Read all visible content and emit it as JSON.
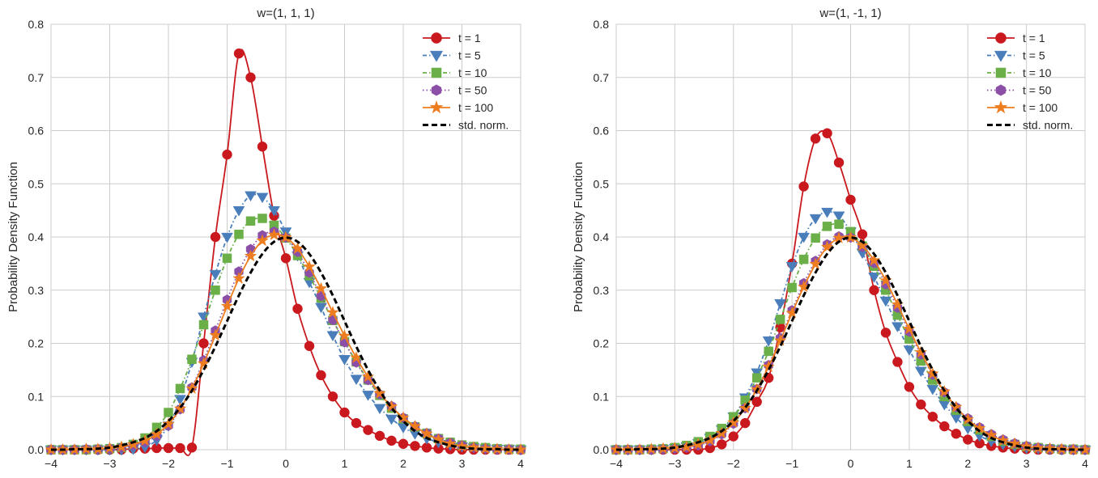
{
  "chart_data": [
    {
      "type": "line",
      "title": "w=(1, 1, 1)",
      "ylabel": "Probability Density Function",
      "xlim": [
        -4,
        4
      ],
      "ylim": [
        0,
        0.8
      ],
      "xticks": [
        "−4",
        "−3",
        "−2",
        "−1",
        "0",
        "1",
        "2",
        "3",
        "4"
      ],
      "yticks": [
        "0.0",
        "0.1",
        "0.2",
        "0.3",
        "0.4",
        "0.5",
        "0.6",
        "0.7",
        "0.8"
      ],
      "grid": true,
      "legend": "top-right",
      "x": [
        -4,
        -3.8,
        -3.6,
        -3.4,
        -3.2,
        -3,
        -2.8,
        -2.6,
        -2.4,
        -2.2,
        -2,
        -1.8,
        -1.6,
        -1.4,
        -1.2,
        -1,
        -0.8,
        -0.6,
        -0.4,
        -0.2,
        0,
        0.2,
        0.4,
        0.6,
        0.8,
        1,
        1.2,
        1.4,
        1.6,
        1.8,
        2,
        2.2,
        2.4,
        2.6,
        2.8,
        3,
        3.2,
        3.4,
        3.6,
        3.8,
        4
      ],
      "series": [
        {
          "name": "t = 1",
          "color": "#c9191e",
          "marker": "circle",
          "linestyle": "solid",
          "values": [
            0,
            0,
            0,
            0,
            0,
            0,
            0,
            0.002,
            0.002,
            0.003,
            0.003,
            0.003,
            0.004,
            0.2,
            0.4,
            0.555,
            0.745,
            0.7,
            0.57,
            0.44,
            0.36,
            0.265,
            0.195,
            0.14,
            0.1,
            0.07,
            0.05,
            0.037,
            0.026,
            0.017,
            0.011,
            0.007,
            0.004,
            0.002,
            0.001,
            0,
            0,
            0,
            0,
            0,
            0
          ]
        },
        {
          "name": "t = 5",
          "color": "#4a7ebb",
          "marker": "triangle-down",
          "linestyle": "dashdot",
          "values": [
            0,
            0,
            0,
            0,
            0,
            0,
            0,
            0.001,
            0.005,
            0.018,
            0.045,
            0.095,
            0.165,
            0.25,
            0.33,
            0.4,
            0.45,
            0.478,
            0.475,
            0.45,
            0.41,
            0.365,
            0.315,
            0.268,
            0.215,
            0.17,
            0.133,
            0.103,
            0.078,
            0.058,
            0.042,
            0.03,
            0.021,
            0.014,
            0.009,
            0.006,
            0.004,
            0.002,
            0.001,
            0.001,
            0
          ]
        },
        {
          "name": "t = 10",
          "color": "#6aaf48",
          "marker": "square",
          "linestyle": "dashdot",
          "values": [
            0,
            0,
            0,
            0,
            0.001,
            0.002,
            0.004,
            0.01,
            0.022,
            0.042,
            0.07,
            0.115,
            0.17,
            0.235,
            0.3,
            0.36,
            0.405,
            0.43,
            0.435,
            0.422,
            0.398,
            0.365,
            0.327,
            0.285,
            0.243,
            0.203,
            0.165,
            0.131,
            0.102,
            0.078,
            0.058,
            0.043,
            0.031,
            0.021,
            0.014,
            0.009,
            0.006,
            0.004,
            0.002,
            0.001,
            0.001
          ]
        },
        {
          "name": "t = 50",
          "color": "#8b4fa8",
          "marker": "hexagon",
          "linestyle": "dotted",
          "values": [
            0,
            0,
            0,
            0.001,
            0.001,
            0.002,
            0.004,
            0.008,
            0.014,
            0.026,
            0.045,
            0.076,
            0.117,
            0.168,
            0.224,
            0.282,
            0.335,
            0.377,
            0.403,
            0.41,
            0.399,
            0.372,
            0.333,
            0.289,
            0.244,
            0.202,
            0.164,
            0.131,
            0.104,
            0.082,
            0.06,
            0.044,
            0.031,
            0.021,
            0.013,
            0.008,
            0.004,
            0.002,
            0.001,
            0.001,
            0
          ]
        },
        {
          "name": "t = 100",
          "color": "#ee7d1f",
          "marker": "star",
          "linestyle": "solid",
          "values": [
            0,
            0,
            0,
            0.001,
            0.001,
            0.003,
            0.005,
            0.01,
            0.017,
            0.029,
            0.048,
            0.077,
            0.115,
            0.162,
            0.215,
            0.27,
            0.322,
            0.364,
            0.393,
            0.404,
            0.399,
            0.378,
            0.344,
            0.303,
            0.258,
            0.214,
            0.173,
            0.137,
            0.106,
            0.081,
            0.06,
            0.044,
            0.03,
            0.019,
            0.011,
            0.006,
            0.004,
            0.002,
            0.001,
            0,
            0
          ]
        },
        {
          "name": "std. norm.",
          "color": "#000000",
          "marker": "none",
          "linestyle": "dashed",
          "values": [
            0,
            0,
            0.001,
            0.001,
            0.002,
            0.004,
            0.008,
            0.014,
            0.022,
            0.035,
            0.054,
            0.079,
            0.111,
            0.15,
            0.194,
            0.242,
            0.29,
            0.333,
            0.368,
            0.391,
            0.399,
            0.391,
            0.368,
            0.333,
            0.29,
            0.242,
            0.194,
            0.15,
            0.111,
            0.079,
            0.054,
            0.035,
            0.022,
            0.014,
            0.008,
            0.004,
            0.002,
            0.001,
            0.001,
            0,
            0
          ]
        }
      ]
    },
    {
      "type": "line",
      "title": "w=(1, -1, 1)",
      "ylabel": "Probability Density Function",
      "xlim": [
        -4,
        4
      ],
      "ylim": [
        0,
        0.8
      ],
      "xticks": [
        "−4",
        "−3",
        "−2",
        "−1",
        "0",
        "1",
        "2",
        "3",
        "4"
      ],
      "yticks": [
        "0.0",
        "0.1",
        "0.2",
        "0.3",
        "0.4",
        "0.5",
        "0.6",
        "0.7",
        "0.8"
      ],
      "grid": true,
      "legend": "top-right",
      "x": [
        -4,
        -3.8,
        -3.6,
        -3.4,
        -3.2,
        -3,
        -2.8,
        -2.6,
        -2.4,
        -2.2,
        -2,
        -1.8,
        -1.6,
        -1.4,
        -1.2,
        -1,
        -0.8,
        -0.6,
        -0.4,
        -0.2,
        0,
        0.2,
        0.4,
        0.6,
        0.8,
        1,
        1.2,
        1.4,
        1.6,
        1.8,
        2,
        2.2,
        2.4,
        2.6,
        2.8,
        3,
        3.2,
        3.4,
        3.6,
        3.8,
        4
      ],
      "series": [
        {
          "name": "t = 1",
          "color": "#c9191e",
          "marker": "circle",
          "linestyle": "solid",
          "values": [
            0,
            0,
            0,
            0,
            0,
            0,
            0,
            0,
            0.003,
            0.01,
            0.025,
            0.05,
            0.09,
            0.135,
            0.23,
            0.35,
            0.495,
            0.585,
            0.595,
            0.54,
            0.47,
            0.405,
            0.3,
            0.22,
            0.165,
            0.118,
            0.085,
            0.062,
            0.044,
            0.03,
            0.019,
            0.012,
            0.007,
            0.004,
            0.002,
            0.001,
            0,
            0,
            0,
            0,
            0
          ]
        },
        {
          "name": "t = 5",
          "color": "#4a7ebb",
          "marker": "triangle-down",
          "linestyle": "dashdot",
          "values": [
            0,
            0,
            0,
            0,
            0.001,
            0.003,
            0.006,
            0.012,
            0.022,
            0.038,
            0.062,
            0.098,
            0.145,
            0.205,
            0.275,
            0.345,
            0.4,
            0.435,
            0.447,
            0.44,
            0.41,
            0.37,
            0.325,
            0.28,
            0.232,
            0.188,
            0.148,
            0.114,
            0.085,
            0.06,
            0.04,
            0.026,
            0.016,
            0.01,
            0.006,
            0.003,
            0.002,
            0.001,
            0,
            0,
            0
          ]
        },
        {
          "name": "t = 10",
          "color": "#6aaf48",
          "marker": "square",
          "linestyle": "dashdot",
          "values": [
            0,
            0,
            0,
            0.001,
            0.002,
            0.004,
            0.008,
            0.015,
            0.025,
            0.04,
            0.062,
            0.093,
            0.135,
            0.185,
            0.245,
            0.305,
            0.358,
            0.398,
            0.42,
            0.424,
            0.41,
            0.383,
            0.345,
            0.3,
            0.253,
            0.208,
            0.167,
            0.131,
            0.1,
            0.074,
            0.053,
            0.037,
            0.025,
            0.016,
            0.01,
            0.006,
            0.004,
            0.002,
            0.001,
            0.001,
            0
          ]
        },
        {
          "name": "t = 50",
          "color": "#8b4fa8",
          "marker": "hexagon",
          "linestyle": "dotted",
          "values": [
            0,
            0,
            0,
            0,
            0.001,
            0.002,
            0.004,
            0.008,
            0.016,
            0.029,
            0.049,
            0.078,
            0.114,
            0.159,
            0.21,
            0.262,
            0.313,
            0.355,
            0.386,
            0.401,
            0.399,
            0.381,
            0.351,
            0.311,
            0.267,
            0.222,
            0.179,
            0.141,
            0.108,
            0.08,
            0.059,
            0.042,
            0.029,
            0.019,
            0.012,
            0.007,
            0.004,
            0.002,
            0.001,
            0.001,
            0
          ]
        },
        {
          "name": "t = 100",
          "color": "#ee7d1f",
          "marker": "star",
          "linestyle": "solid",
          "values": [
            0,
            0,
            0,
            0.001,
            0.002,
            0.003,
            0.005,
            0.01,
            0.018,
            0.031,
            0.051,
            0.078,
            0.113,
            0.156,
            0.205,
            0.257,
            0.306,
            0.349,
            0.381,
            0.398,
            0.399,
            0.384,
            0.356,
            0.318,
            0.273,
            0.227,
            0.183,
            0.143,
            0.109,
            0.08,
            0.057,
            0.04,
            0.027,
            0.017,
            0.011,
            0.006,
            0.003,
            0.002,
            0.001,
            0,
            0
          ]
        },
        {
          "name": "std. norm.",
          "color": "#000000",
          "marker": "none",
          "linestyle": "dashed",
          "values": [
            0,
            0,
            0.001,
            0.001,
            0.002,
            0.004,
            0.008,
            0.014,
            0.022,
            0.035,
            0.054,
            0.079,
            0.111,
            0.15,
            0.194,
            0.242,
            0.29,
            0.333,
            0.368,
            0.391,
            0.399,
            0.391,
            0.368,
            0.333,
            0.29,
            0.242,
            0.194,
            0.15,
            0.111,
            0.079,
            0.054,
            0.035,
            0.022,
            0.014,
            0.008,
            0.004,
            0.002,
            0.001,
            0.001,
            0,
            0
          ]
        }
      ]
    }
  ]
}
